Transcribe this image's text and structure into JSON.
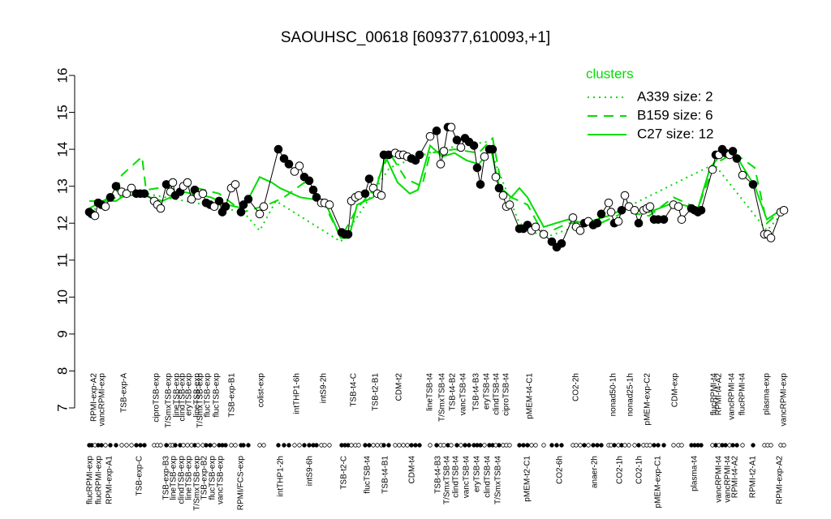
{
  "chart_data": {
    "type": "line",
    "title": "SAOUHSC_00618 [609377,610093,+1]",
    "ylim": [
      7,
      16
    ],
    "yticks": [
      7,
      8,
      9,
      10,
      11,
      12,
      13,
      14,
      15,
      16
    ],
    "xlim": [
      0,
      870
    ],
    "legend_title": "clusters",
    "legend_position": "top-right",
    "x": [
      5,
      8,
      12,
      16,
      20,
      25,
      31,
      38,
      45,
      51,
      57,
      63,
      68,
      73,
      85,
      89,
      93,
      100,
      105,
      108,
      111,
      117,
      121,
      126,
      131,
      135,
      139,
      145,
      149,
      154,
      159,
      165,
      169,
      173,
      180,
      185,
      192,
      195,
      201,
      215,
      220,
      238,
      245,
      251,
      258,
      264,
      270,
      276,
      281,
      285,
      291,
      295,
      301,
      316,
      320,
      324,
      328,
      333,
      337,
      345,
      350,
      355,
      360,
      365,
      368,
      374,
      382,
      387,
      392,
      397,
      402,
      407,
      412,
      425,
      433,
      438,
      442,
      447,
      451,
      458,
      463,
      468,
      473,
      479,
      483,
      487,
      492,
      498,
      502,
      506,
      510,
      515,
      519,
      523,
      535,
      540,
      545,
      550,
      555,
      565,
      575,
      581,
      587,
      601,
      605,
      610,
      615,
      620,
      626,
      631,
      636,
      645,
      648,
      652,
      657,
      661,
      665,
      670,
      677,
      682,
      688,
      692,
      696,
      701,
      706,
      713,
      725,
      731,
      735,
      747,
      751,
      755,
      759,
      773,
      777,
      781,
      785,
      789,
      794,
      798,
      803,
      810,
      823,
      837,
      841,
      845,
      857,
      861
    ],
    "values": [
      12.3,
      12.25,
      12.2,
      12.55,
      12.5,
      12.45,
      12.7,
      13.0,
      12.85,
      12.8,
      12.95,
      12.8,
      12.8,
      12.8,
      12.6,
      12.5,
      12.4,
      13.05,
      12.85,
      13.1,
      12.75,
      12.85,
      13.0,
      13.1,
      12.65,
      12.9,
      12.75,
      12.8,
      12.55,
      12.5,
      12.45,
      12.6,
      12.3,
      12.45,
      12.95,
      13.05,
      12.3,
      12.5,
      12.65,
      12.25,
      12.45,
      14.0,
      13.75,
      13.6,
      13.4,
      13.55,
      13.25,
      13.15,
      12.9,
      12.7,
      12.55,
      12.55,
      12.5,
      11.75,
      11.7,
      11.7,
      12.6,
      12.7,
      12.75,
      12.8,
      13.2,
      12.95,
      12.8,
      12.75,
      13.85,
      13.85,
      13.9,
      13.85,
      13.85,
      13.8,
      13.75,
      13.7,
      13.85,
      14.35,
      14.5,
      13.6,
      13.95,
      14.6,
      14.6,
      14.25,
      14.05,
      14.3,
      14.2,
      14.1,
      13.5,
      13.05,
      13.8,
      14.0,
      14.0,
      13.25,
      12.95,
      12.75,
      12.45,
      12.5,
      11.85,
      11.85,
      11.95,
      11.8,
      11.9,
      11.7,
      11.5,
      11.35,
      11.45,
      12.15,
      11.9,
      11.8,
      12.0,
      12.05,
      11.95,
      12.0,
      12.25,
      12.55,
      12.3,
      12.0,
      12.05,
      12.35,
      12.75,
      12.45,
      12.35,
      12.0,
      12.35,
      12.4,
      12.45,
      12.1,
      12.1,
      12.1,
      12.5,
      12.45,
      12.1,
      12.4,
      12.35,
      12.3,
      12.35,
      13.45,
      13.85,
      13.85,
      14.0,
      13.9,
      13.85,
      13.95,
      13.75,
      13.3,
      13.05,
      11.7,
      11.7,
      11.6,
      12.3,
      12.35
    ],
    "point_colors": [
      "#000",
      "#000",
      "#fff",
      "#000",
      "#000",
      "#fff",
      "#000",
      "#000",
      "#fff",
      "#fff",
      "#fff",
      "#000",
      "#000",
      "#000",
      "#fff",
      "#fff",
      "#fff",
      "#000",
      "#fff",
      "#fff",
      "#000",
      "#000",
      "#fff",
      "#fff",
      "#fff",
      "#000",
      "#fff",
      "#fff",
      "#000",
      "#000",
      "#fff",
      "#000",
      "#000",
      "#000",
      "#fff",
      "#fff",
      "#000",
      "#000",
      "#000",
      "#fff",
      "#fff",
      "#000",
      "#000",
      "#000",
      "#fff",
      "#fff",
      "#000",
      "#000",
      "#000",
      "#000",
      "#fff",
      "#fff",
      "#fff",
      "#000",
      "#000",
      "#000",
      "#fff",
      "#fff",
      "#fff",
      "#000",
      "#000",
      "#fff",
      "#fff",
      "#fff",
      "#000",
      "#000",
      "#fff",
      "#fff",
      "#fff",
      "#fff",
      "#000",
      "#000",
      "#000",
      "#fff",
      "#000",
      "#fff",
      "#fff",
      "#000",
      "#fff",
      "#000",
      "#fff",
      "#000",
      "#000",
      "#000",
      "#000",
      "#000",
      "#fff",
      "#000",
      "#000",
      "#fff",
      "#000",
      "#fff",
      "#fff",
      "#fff",
      "#000",
      "#000",
      "#000",
      "#fff",
      "#fff",
      "#fff",
      "#000",
      "#000",
      "#000",
      "#fff",
      "#fff",
      "#fff",
      "#000",
      "#fff",
      "#000",
      "#000",
      "#000",
      "#fff",
      "#fff",
      "#000",
      "#fff",
      "#000",
      "#fff",
      "#fff",
      "#fff",
      "#000",
      "#fff",
      "#fff",
      "#fff",
      "#000",
      "#000",
      "#000",
      "#fff",
      "#fff",
      "#fff",
      "#000",
      "#000",
      "#000",
      "#000",
      "#fff",
      "#000",
      "#fff",
      "#000",
      "#000",
      "#fff",
      "#000",
      "#000",
      "#fff",
      "#000",
      "#fff",
      "#fff",
      "#fff",
      "#fff",
      "#fff"
    ],
    "clusters": [
      {
        "name": "A339 size: 2",
        "color": "#00dd00",
        "dash": "2,5",
        "x": [
          5,
          38,
          75,
          195,
          215,
          235,
          315,
          375,
          435,
          495,
          535,
          565,
          655,
          775,
          840,
          860
        ],
        "values": [
          12.3,
          12.7,
          12.8,
          12.3,
          11.8,
          12.6,
          11.5,
          13.5,
          14.0,
          14.2,
          12.0,
          11.6,
          12.3,
          13.6,
          11.8,
          12.3
        ]
      },
      {
        "name": "B159 size: 6",
        "color": "#00dd00",
        "dash": "12,8",
        "x": [
          5,
          38,
          45,
          70,
          75,
          120,
          165,
          195,
          225,
          245,
          270,
          295,
          315,
          335,
          355,
          375,
          395,
          415,
          425,
          455,
          485,
          502,
          515,
          545,
          565,
          595,
          635,
          665,
          695,
          725,
          755,
          775,
          800,
          825,
          840,
          860
        ],
        "values": [
          12.4,
          12.8,
          13.3,
          13.8,
          12.9,
          13.05,
          12.8,
          12.3,
          12.5,
          12.7,
          13.1,
          12.5,
          11.6,
          12.4,
          12.9,
          13.9,
          13.2,
          13.0,
          13.9,
          14.0,
          13.9,
          14.3,
          12.8,
          12.5,
          11.7,
          12.0,
          12.0,
          12.3,
          12.2,
          12.7,
          12.4,
          13.6,
          13.9,
          13.5,
          12.0,
          12.4
        ]
      },
      {
        "name": "C27 size: 12",
        "color": "#00dd00",
        "dash": "none",
        "x": [
          5,
          38,
          45,
          65,
          95,
          120,
          155,
          175,
          195,
          215,
          230,
          240,
          265,
          295,
          315,
          325,
          335,
          355,
          370,
          385,
          400,
          410,
          425,
          440,
          455,
          470,
          485,
          500,
          510,
          525,
          535,
          545,
          565,
          595,
          615,
          645,
          665,
          695,
          725,
          755,
          770,
          785,
          800,
          825,
          840,
          860
        ],
        "values": [
          12.6,
          12.6,
          12.7,
          12.8,
          12.6,
          12.85,
          12.7,
          12.5,
          12.4,
          13.25,
          13.1,
          12.95,
          12.7,
          12.6,
          11.6,
          11.6,
          12.5,
          12.7,
          13.8,
          13.1,
          12.8,
          12.9,
          14.1,
          13.8,
          13.9,
          13.7,
          13.6,
          14.0,
          13.0,
          12.7,
          12.95,
          12.7,
          11.9,
          12.1,
          12.0,
          12.2,
          12.4,
          12.3,
          12.55,
          12.4,
          13.5,
          13.9,
          13.9,
          13.0,
          12.1,
          12.4
        ]
      }
    ],
    "top_labels": [
      {
        "x": 11,
        "label": "RPMI-exp-A2"
      },
      {
        "x": 21,
        "label": "vancRPMI-exp"
      },
      {
        "x": 48,
        "label": "TSB-exp-A"
      },
      {
        "x": 88,
        "label": "ciproTSB-exp"
      },
      {
        "x": 103,
        "label": "T/SmxTSB-exp"
      },
      {
        "x": 113,
        "label": "lineTSB-exp"
      },
      {
        "x": 120,
        "label": "clindTSB-exp"
      },
      {
        "x": 128,
        "label": "eryTSB-exp"
      },
      {
        "x": 138,
        "label": "lineTSB-exp"
      },
      {
        "x": 142,
        "label": "T/SmxTSB-exp"
      },
      {
        "x": 151,
        "label": "flucTSB-exp"
      },
      {
        "x": 162,
        "label": "flucTSB-exp"
      },
      {
        "x": 181,
        "label": "TSB-exp-B1"
      },
      {
        "x": 217,
        "label": "colist-exp"
      },
      {
        "x": 261,
        "label": "intTHP1-6h"
      },
      {
        "x": 294,
        "label": "intS9-2h"
      },
      {
        "x": 331,
        "label": "TSB-t4-C"
      },
      {
        "x": 358,
        "label": "TSB-t2-B1"
      },
      {
        "x": 387,
        "label": "CDM-t2"
      },
      {
        "x": 425,
        "label": "lineTSB-t4"
      },
      {
        "x": 440,
        "label": "T/SmxTSB-t4"
      },
      {
        "x": 453,
        "label": "TSB-t4-B2"
      },
      {
        "x": 466,
        "label": "vancTSB-t4"
      },
      {
        "x": 482,
        "label": "TSB-t4-B3"
      },
      {
        "x": 495,
        "label": "eryTSB-t4"
      },
      {
        "x": 507,
        "label": "clindTSB-t4"
      },
      {
        "x": 519,
        "label": "ciproTSB-t4"
      },
      {
        "x": 548,
        "label": "pMEM-t4-C1"
      },
      {
        "x": 605,
        "label": "CO2-2h"
      },
      {
        "x": 651,
        "label": "nonad50-1h"
      },
      {
        "x": 672,
        "label": "nonad25-1h"
      },
      {
        "x": 693,
        "label": "pMEM-exp-C2"
      },
      {
        "x": 727,
        "label": "CDM-exp"
      },
      {
        "x": 775,
        "label": "flucRPMI-t4"
      },
      {
        "x": 781,
        "label": "RPMI-t4-A2"
      },
      {
        "x": 797,
        "label": "vancRPMI-t4"
      },
      {
        "x": 810,
        "label": "flucRPMI-t4"
      },
      {
        "x": 840,
        "label": "plasma-exp"
      },
      {
        "x": 861,
        "label": "vancRPMI-exp"
      }
    ],
    "bottom_labels": [
      {
        "x": 6,
        "label": "flucRPMI-exp"
      },
      {
        "x": 17,
        "label": "flucRPMI-exp"
      },
      {
        "x": 30,
        "label": "RPMI-exp-A1"
      },
      {
        "x": 67,
        "label": "TSB-exp-C"
      },
      {
        "x": 100,
        "label": "TSB-exp-B3"
      },
      {
        "x": 109,
        "label": "lineTSB-exp"
      },
      {
        "x": 119,
        "label": "clindTSB-exp"
      },
      {
        "x": 128,
        "label": "lineTSB-exp"
      },
      {
        "x": 138,
        "label": "T/SmxTSB-exp"
      },
      {
        "x": 147,
        "label": "TSB-exp-B2"
      },
      {
        "x": 157,
        "label": "flucTSB-exp"
      },
      {
        "x": 167,
        "label": "vancTSB-exp"
      },
      {
        "x": 192,
        "label": "RPMI/FCS-exp"
      },
      {
        "x": 241,
        "label": "intTHP1-2h"
      },
      {
        "x": 277,
        "label": "intS9-6h"
      },
      {
        "x": 319,
        "label": "TSB-t2-C"
      },
      {
        "x": 348,
        "label": "flucTSB-t4"
      },
      {
        "x": 370,
        "label": "TSB-t4-B1"
      },
      {
        "x": 403,
        "label": "CDM-t4"
      },
      {
        "x": 435,
        "label": "TSB-t4-B3"
      },
      {
        "x": 446,
        "label": "T/SmxTSB-t4"
      },
      {
        "x": 457,
        "label": "clindTSB-t4"
      },
      {
        "x": 470,
        "label": "vancTSB-t4"
      },
      {
        "x": 483,
        "label": "eryTSB-t4"
      },
      {
        "x": 496,
        "label": "clindTSB-t4"
      },
      {
        "x": 509,
        "label": "T/SmxTSB-t4"
      },
      {
        "x": 545,
        "label": "pMEM-t2-C1"
      },
      {
        "x": 585,
        "label": "CO2-6h"
      },
      {
        "x": 628,
        "label": "anaer-2h"
      },
      {
        "x": 659,
        "label": "CO2-1h"
      },
      {
        "x": 683,
        "label": "CO2-1h"
      },
      {
        "x": 706,
        "label": "pMEM-exp-C1"
      },
      {
        "x": 751,
        "label": "plasma-t4"
      },
      {
        "x": 781,
        "label": "vancRPMI-t4"
      },
      {
        "x": 792,
        "label": "vancRPMI-t4"
      },
      {
        "x": 801,
        "label": "RPMI-t4-A2"
      },
      {
        "x": 823,
        "label": "RPMI-t2-A1"
      },
      {
        "x": 856,
        "label": "RPMI-exp-A2"
      }
    ]
  }
}
